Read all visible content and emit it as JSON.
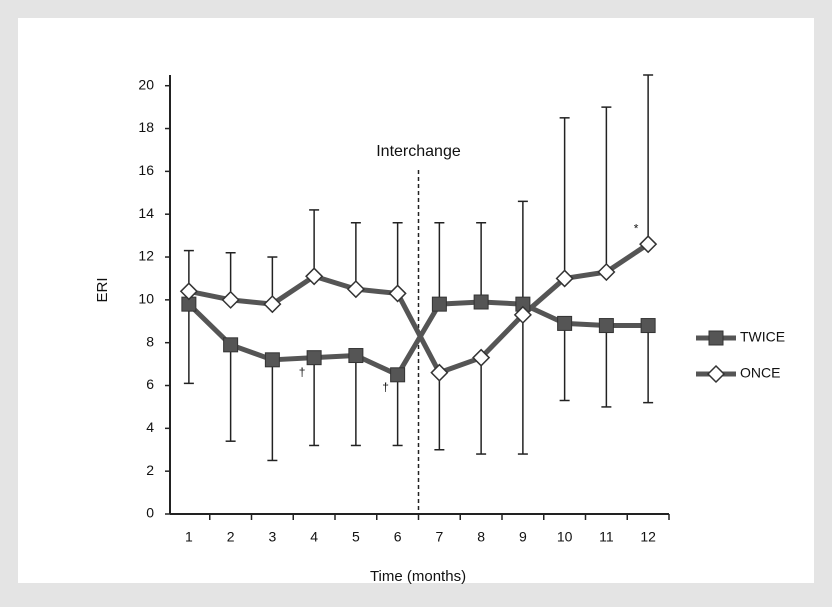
{
  "chart_data": {
    "type": "line",
    "x_label": "Time (months)",
    "y_label": "ERI",
    "x": [
      1,
      2,
      3,
      4,
      5,
      6,
      7,
      8,
      9,
      10,
      11,
      12
    ],
    "xlim": [
      0.5,
      12.5
    ],
    "xticks": [
      1,
      2,
      3,
      4,
      5,
      6,
      7,
      8,
      9,
      10,
      11,
      12
    ],
    "ylim": [
      0,
      20.5
    ],
    "yticks": [
      0,
      2,
      4,
      6,
      8,
      10,
      12,
      14,
      16,
      18,
      20
    ],
    "series": [
      {
        "name": "TWICE",
        "color": "#555555",
        "marker": "square",
        "values": [
          9.8,
          7.9,
          7.2,
          7.3,
          7.4,
          6.5,
          9.8,
          9.9,
          9.8,
          8.9,
          8.8,
          8.8
        ],
        "error_minus": [
          3.7,
          4.5,
          4.7,
          4.1,
          4.2,
          3.3,
          null,
          null,
          null,
          3.6,
          3.8,
          3.6
        ],
        "error_plus": [
          null,
          null,
          null,
          null,
          null,
          null,
          3.8,
          3.7,
          4.8,
          null,
          null,
          null
        ]
      },
      {
        "name": "ONCE",
        "color": "#555555",
        "marker": "diamond",
        "values": [
          10.4,
          10.0,
          9.8,
          11.1,
          10.5,
          10.3,
          6.6,
          7.3,
          9.3,
          11.0,
          11.3,
          12.6
        ],
        "error_minus": [
          null,
          null,
          null,
          null,
          null,
          null,
          3.6,
          4.5,
          6.5,
          null,
          null,
          null
        ],
        "error_plus": [
          1.9,
          2.2,
          2.2,
          3.1,
          3.1,
          3.3,
          null,
          null,
          null,
          7.5,
          7.7,
          7.9
        ]
      }
    ],
    "vline": {
      "x": 6.5,
      "label": "Interchange"
    },
    "annotations": [
      {
        "text": "†",
        "x": 4,
        "y": 6.6
      },
      {
        "text": "†",
        "x": 6,
        "y": 5.9
      },
      {
        "text": "*",
        "x": 12,
        "y": 13.3
      }
    ],
    "legend": "right"
  }
}
